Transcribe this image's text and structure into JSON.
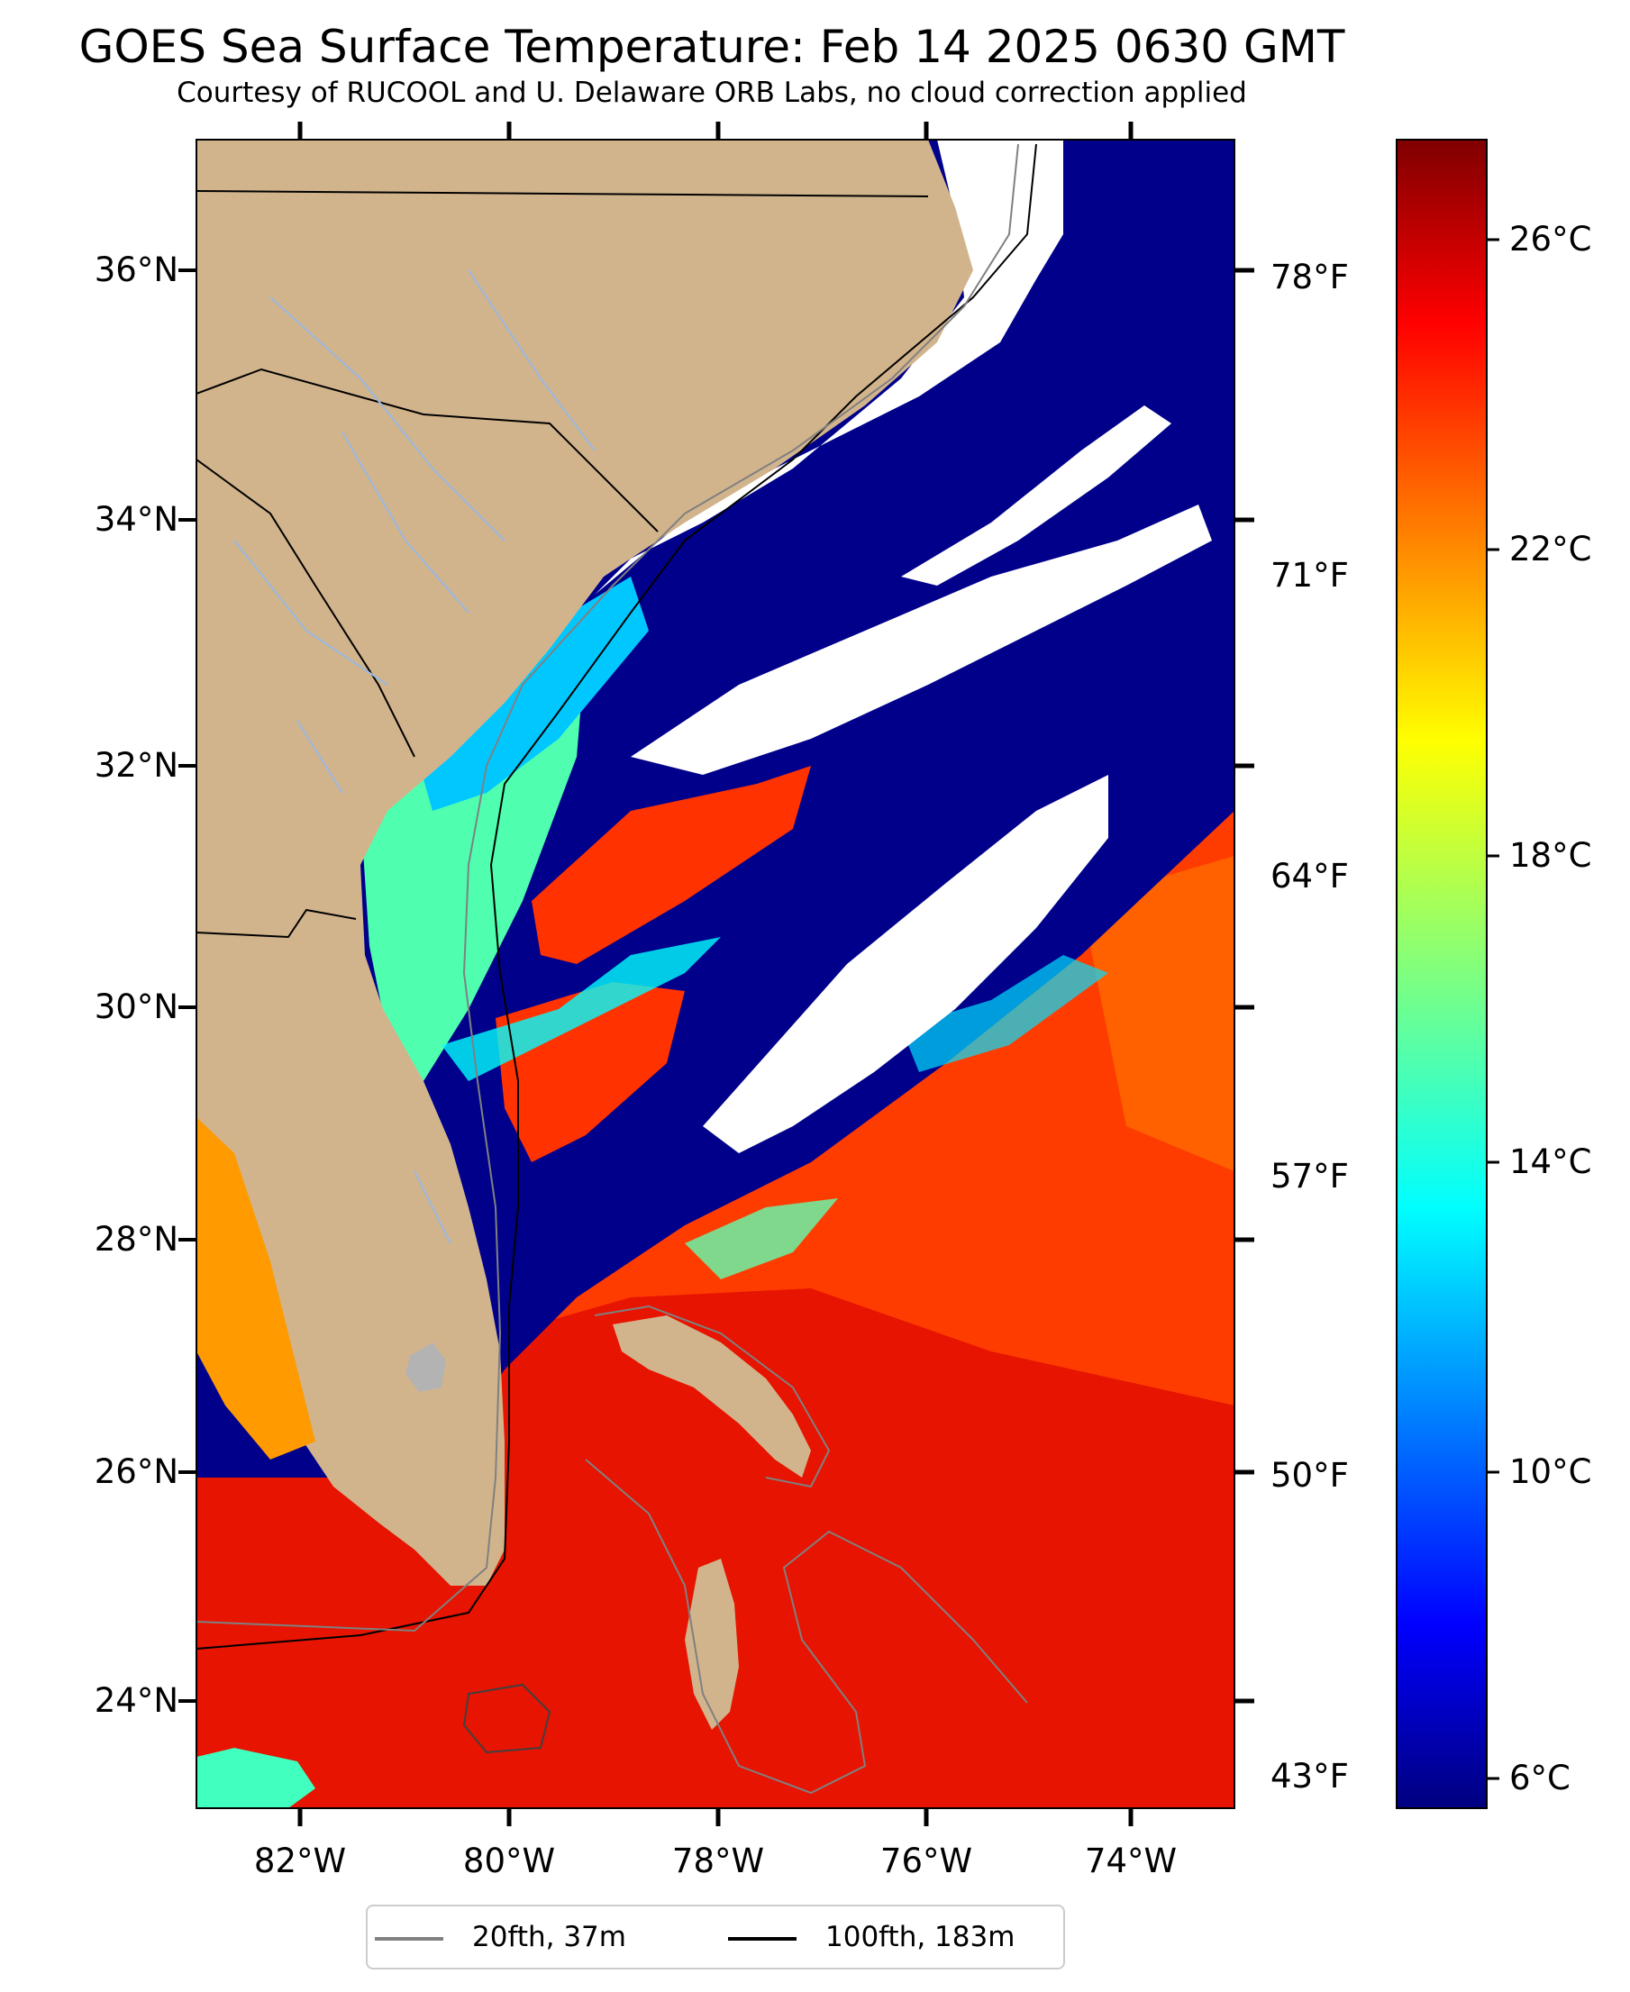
{
  "title": "GOES Sea Surface Temperature: Feb 14 2025 0630 GMT",
  "subtitle": "Courtesy of RUCOOL and U. Delaware ORB Labs, no cloud correction applied",
  "map": {
    "lat_labels": [
      "36°N",
      "34°N",
      "32°N",
      "30°N",
      "28°N",
      "26°N",
      "24°N"
    ],
    "lon_labels": [
      "82°W",
      "80°W",
      "78°W",
      "76°W",
      "74°W"
    ],
    "fahrenheit_labels": [
      "78°F",
      "71°F",
      "64°F",
      "57°F",
      "50°F",
      "43°F"
    ],
    "colors": {
      "land": "#d2b48c",
      "ocean_warm": "#ff3c00",
      "ocean_hot": "#e61400",
      "cold": "#00008b",
      "cloud_mask": "#ffffff",
      "river": "#9ab8e0",
      "isobath_20fth": "#808080",
      "isobath_100fth": "#000000"
    }
  },
  "colorbar": {
    "celsius_labels": [
      "26°C",
      "22°C",
      "18°C",
      "14°C",
      "10°C",
      "6°C"
    ],
    "colormap": "jet",
    "range_c": [
      5.5,
      28
    ]
  },
  "legend": {
    "items": [
      {
        "label": "20fth, 37m",
        "color": "#808080"
      },
      {
        "label": "100fth, 183m",
        "color": "#000000"
      }
    ]
  }
}
